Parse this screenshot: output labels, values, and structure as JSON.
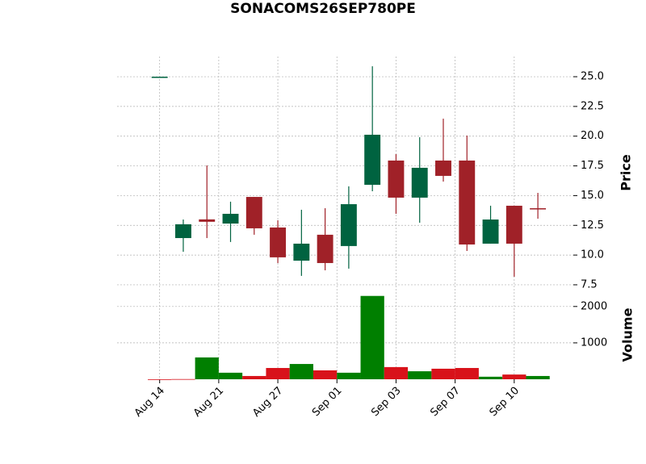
{
  "chart_data": {
    "type": "candlestick",
    "title": "SONACOMS26SEP780PE",
    "x": [
      0,
      1,
      2,
      3,
      4,
      5,
      6,
      7,
      8,
      9,
      10,
      11,
      12,
      13,
      14,
      15,
      16
    ],
    "xlim": [
      -1.8,
      17.5
    ],
    "xticks": [
      {
        "value": 0,
        "label": "Aug 14"
      },
      {
        "value": 2.5,
        "label": "Aug 21"
      },
      {
        "value": 5,
        "label": "Aug 27"
      },
      {
        "value": 7.5,
        "label": "Sep 01"
      },
      {
        "value": 10,
        "label": "Sep 03"
      },
      {
        "value": 12.5,
        "label": "Sep 07"
      },
      {
        "value": 15,
        "label": "Sep 10"
      }
    ],
    "open": [
      25,
      11.43,
      13.0,
      12.65,
      14.89,
      12.32,
      9.53,
      11.71,
      10.76,
      15.91,
      17.95,
      14.83,
      17.95,
      17.95,
      10.96,
      14.15,
      13.94
    ],
    "high": [
      25,
      12.99,
      17.54,
      14.49,
      14.89,
      12.93,
      13.81,
      13.94,
      15.78,
      25.88,
      18.49,
      19.91,
      21.47,
      20.05,
      14.15,
      14.15,
      15.23
    ],
    "low": [
      25,
      10.28,
      11.43,
      11.1,
      11.71,
      9.33,
      8.25,
      8.72,
      8.86,
      15.37,
      13.47,
      12.72,
      16.18,
      10.35,
      10.96,
      8.18,
      13.06
    ],
    "close": [
      25,
      12.59,
      12.8,
      13.47,
      12.25,
      9.81,
      10.96,
      9.33,
      14.28,
      20.12,
      14.83,
      17.34,
      16.66,
      10.89,
      12.99,
      10.96,
      13.87
    ],
    "up_color": "#006340",
    "down_color": "#a02128",
    "ylabel": "Price",
    "ylim": [
      7.36,
      26.7
    ],
    "yticks": [
      7.5,
      {
        "value": 10,
        "label": "10.0"
      },
      12.5,
      {
        "value": 15,
        "label": "15.0"
      },
      17.5,
      {
        "value": 20,
        "label": "20.0"
      },
      22.5,
      {
        "value": 25,
        "label": "25.0"
      }
    ],
    "grid": true,
    "volume": {
      "ylabel": "Volume",
      "values": [
        0,
        5,
        600,
        180,
        90,
        310,
        420,
        245,
        180,
        2290,
        335,
        220,
        290,
        310,
        70,
        130,
        90
      ],
      "colors": [
        "#d8121a",
        "#d8121a",
        "#007f00",
        "#007f00",
        "#d8121a",
        "#d8121a",
        "#007f00",
        "#d8121a",
        "#007f00",
        "#007f00",
        "#d8121a",
        "#007f00",
        "#d8121a",
        "#d8121a",
        "#007f00",
        "#d8121a",
        "#007f00"
      ],
      "ylim": [
        0,
        2550
      ],
      "yticks": [
        1000,
        2000
      ]
    }
  }
}
